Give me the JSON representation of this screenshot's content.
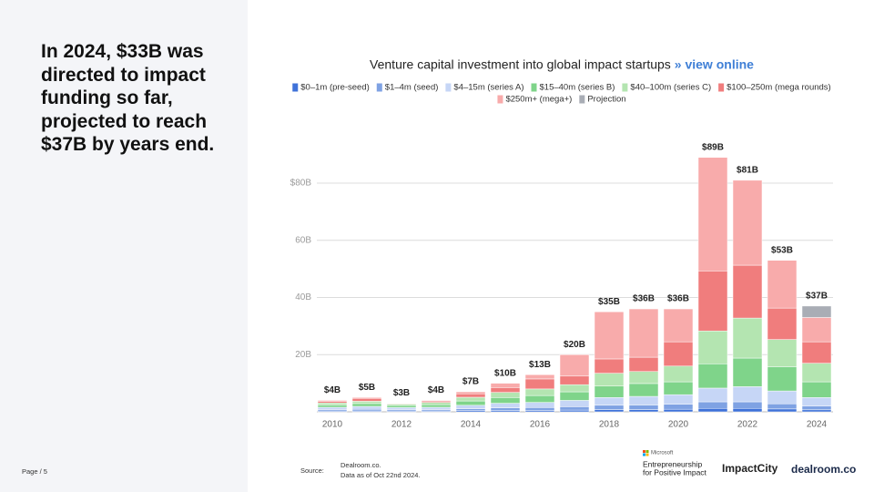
{
  "headline": "In 2024, $33B was directed to impact funding so far, projected to reach $37B by years end.",
  "page_label": "Page / 5",
  "source_label": "Source:",
  "source_lines": [
    "Dealroom.co.",
    "Data as of Oct 22nd 2024."
  ],
  "logos": {
    "microsoft": "Microsoft",
    "partner_lines": [
      "Entrepreneurship",
      "for Positive Impact"
    ],
    "impactcity": "ImpactCity",
    "dealroom": "dealroom.co"
  },
  "chart_data": {
    "type": "stacked_bar",
    "title": "Venture capital investment into global impact startups",
    "title_link": "» view online",
    "categories": [
      "2010",
      null,
      "2012",
      null,
      "2014",
      null,
      "2016",
      null,
      "2018",
      null,
      "2020",
      null,
      "2022",
      null,
      "2024"
    ],
    "ylim": [
      0,
      90
    ],
    "yticks": [
      {
        "value": 20,
        "label": "20B"
      },
      {
        "value": 40,
        "label": "40B"
      },
      {
        "value": 60,
        "label": "60B"
      },
      {
        "value": 80,
        "label": "$80B"
      }
    ],
    "grid": true,
    "series": [
      {
        "name": "$0–1m (pre-seed)",
        "color": "#3f72d9",
        "values": [
          0.3,
          0.3,
          0.3,
          0.3,
          0.4,
          0.5,
          0.5,
          0.6,
          0.8,
          0.8,
          0.9,
          1.2,
          1.2,
          1.0,
          0.7
        ]
      },
      {
        "name": "$1–4m (seed)",
        "color": "#7fa2e3",
        "values": [
          0.5,
          0.6,
          0.5,
          0.5,
          0.7,
          0.9,
          1.0,
          1.2,
          1.5,
          1.6,
          1.8,
          2.3,
          2.3,
          1.8,
          1.3
        ]
      },
      {
        "name": "$4–15m (series A)",
        "color": "#c6d6f6",
        "values": [
          0.8,
          1.0,
          0.7,
          0.8,
          1.2,
          1.6,
          1.8,
          2.2,
          2.7,
          3.0,
          3.3,
          4.8,
          5.3,
          4.5,
          3.0
        ]
      },
      {
        "name": "$15–40m (series B)",
        "color": "#7fd48a",
        "values": [
          0.8,
          1.0,
          0.7,
          0.9,
          1.5,
          2.0,
          2.4,
          3.0,
          4.0,
          4.5,
          4.5,
          8.5,
          10,
          8.5,
          5.5
        ]
      },
      {
        "name": "$40–100m (series C)",
        "color": "#b4e5b1",
        "values": [
          0.7,
          0.8,
          0.5,
          0.8,
          1.3,
          1.8,
          2.3,
          2.5,
          4.5,
          4.2,
          5.5,
          11.5,
          14,
          9.5,
          6.5
        ]
      },
      {
        "name": "$100–250m (mega rounds)",
        "color": "#f07d7d",
        "values": [
          0.6,
          1.0,
          0.2,
          0.5,
          1.2,
          1.7,
          3.5,
          3.0,
          5.0,
          5.0,
          8.5,
          21,
          18.5,
          11,
          7.5
        ]
      },
      {
        "name": "$250m+ (mega+)",
        "color": "#f8abab",
        "values": [
          0.3,
          0.3,
          0.1,
          0.2,
          0.7,
          1.5,
          1.5,
          7.5,
          16.5,
          16.9,
          11.5,
          39.7,
          29.7,
          16.7,
          8.5
        ]
      },
      {
        "name": "Projection",
        "color": "#a9adb5",
        "values": [
          null,
          null,
          null,
          null,
          null,
          null,
          null,
          null,
          null,
          null,
          null,
          null,
          null,
          null,
          4
        ]
      }
    ],
    "totals": {
      "values": [
        4,
        5,
        3,
        4,
        7,
        10,
        13,
        20,
        35,
        36,
        36,
        89,
        81,
        53,
        37
      ],
      "value_labels": [
        "$4B",
        "$5B",
        "$3B",
        "$4B",
        "$7B",
        "$10B",
        "$13B",
        "$20B",
        "$35B",
        "$36B",
        "$36B",
        "$89B",
        "$81B",
        "$53B",
        "$37B"
      ]
    }
  }
}
